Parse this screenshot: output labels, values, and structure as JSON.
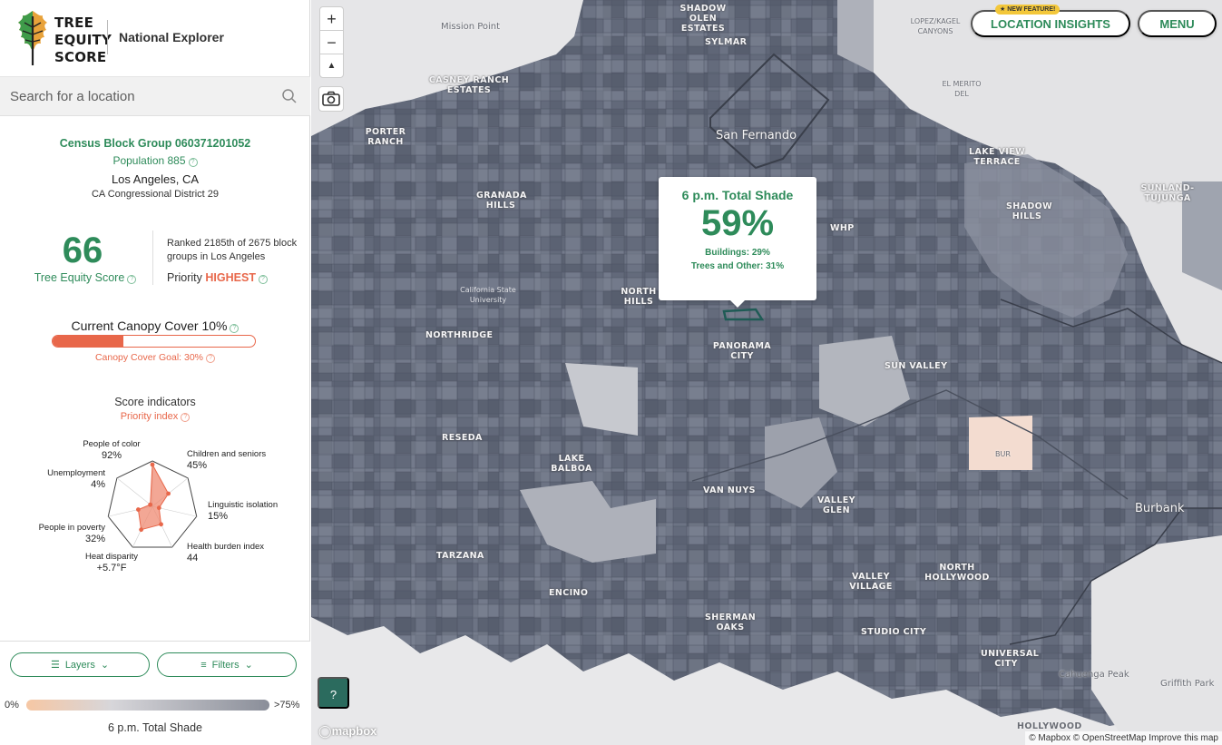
{
  "header": {
    "logo_lines": [
      "TREE",
      "EQUITY",
      "SCORE"
    ],
    "explorer": "National Explorer"
  },
  "search": {
    "placeholder": "Search for a location"
  },
  "summary": {
    "block_group": "Census Block Group 060371201052",
    "population": "Population 885",
    "city": "Los Angeles, CA",
    "district": "CA Congressional District 29",
    "score": "66",
    "score_label": "Tree Equity Score",
    "rank_text": "Ranked 2185th of 2675 block groups in Los Angeles",
    "priority_label": "Priority",
    "priority_value": "HIGHEST",
    "canopy_title": "Current Canopy Cover 10%",
    "canopy_fraction": 0.35,
    "canopy_goal": "Canopy Cover Goal: 30%"
  },
  "indicators": {
    "title": "Score indicators",
    "subtitle": "Priority index",
    "items": [
      {
        "label": "People of color",
        "value": "92%",
        "level": 0.92
      },
      {
        "label": "Children and seniors",
        "value": "45%",
        "level": 0.45
      },
      {
        "label": "Linguistic isolation",
        "value": "15%",
        "level": 0.15
      },
      {
        "label": "Health burden index",
        "value": "44",
        "level": 0.44
      },
      {
        "label": "Heat disparity",
        "value": "+5.7°F",
        "level": 0.57
      },
      {
        "label": "People in poverty",
        "value": "32%",
        "level": 0.32
      },
      {
        "label": "Unemployment",
        "value": "4%",
        "level": 0.04
      }
    ]
  },
  "controls": {
    "layers": "Layers",
    "filters": "Filters"
  },
  "legend": {
    "low": "0%",
    "high": ">75%",
    "title": "6 p.m. Total Shade",
    "low_color": "#f6c7a4",
    "high_color": "#8a8e99"
  },
  "map": {
    "zoom_in": "+",
    "zoom_out": "−",
    "compass": "▲",
    "tooltip": {
      "title": "6 p.m. Total Shade",
      "value": "59%",
      "buildings": "Buildings: 29%",
      "trees": "Trees and Other: 31%"
    },
    "new_feature": "★ NEW FEATURE!",
    "location_insights": "LOCATION INSIGHTS",
    "menu": "MENU",
    "help": "?",
    "mapbox": "mapbox",
    "attribution": "© Mapbox © OpenStreetMap  Improve this map",
    "labels": {
      "mission_point": "Mission Point",
      "shadow_olen": "SHADOW OLEN ESTATES",
      "sylmar": "SYLMAR",
      "lopez": "LOPEZ/KAGEL CANYONS",
      "el_merito": "EL MERITO DEL",
      "casney": "CASNEY RANCH ESTATES",
      "porter": "PORTER RANCH",
      "san_fernando": "San Fernando",
      "lake_view": "LAKE VIEW TERRACE",
      "shadow_hills": "SHADOW HILLS",
      "sunland": "SUNLAND-TUJUNGA",
      "granada": "GRANADA HILLS",
      "whp": "WHP",
      "csu": "California State University",
      "north_hills": "NORTH HILLS",
      "northridge": "NORTHRIDGE",
      "panorama": "PANORAMA CITY",
      "sun_valley": "SUN VALLEY",
      "reseda": "RESEDA",
      "bur": "BUR",
      "lake_balboa": "LAKE BALBOA",
      "van_nuys": "VAN NUYS",
      "valley_glen": "VALLEY GLEN",
      "burbank": "Burbank",
      "tarzana": "TARZANA",
      "north_hollywood": "NORTH HOLLYWOOD",
      "encino": "ENCINO",
      "valley_village": "VALLEY VILLAGE",
      "sherman_oaks": "SHERMAN OAKS",
      "studio_city": "STUDIO CITY",
      "universal_city": "UNIVERSAL CITY",
      "cahuenga": "Cahuenga Peak",
      "griffith": "Griffith Park",
      "hollywood": "HOLLYWOOD"
    }
  }
}
